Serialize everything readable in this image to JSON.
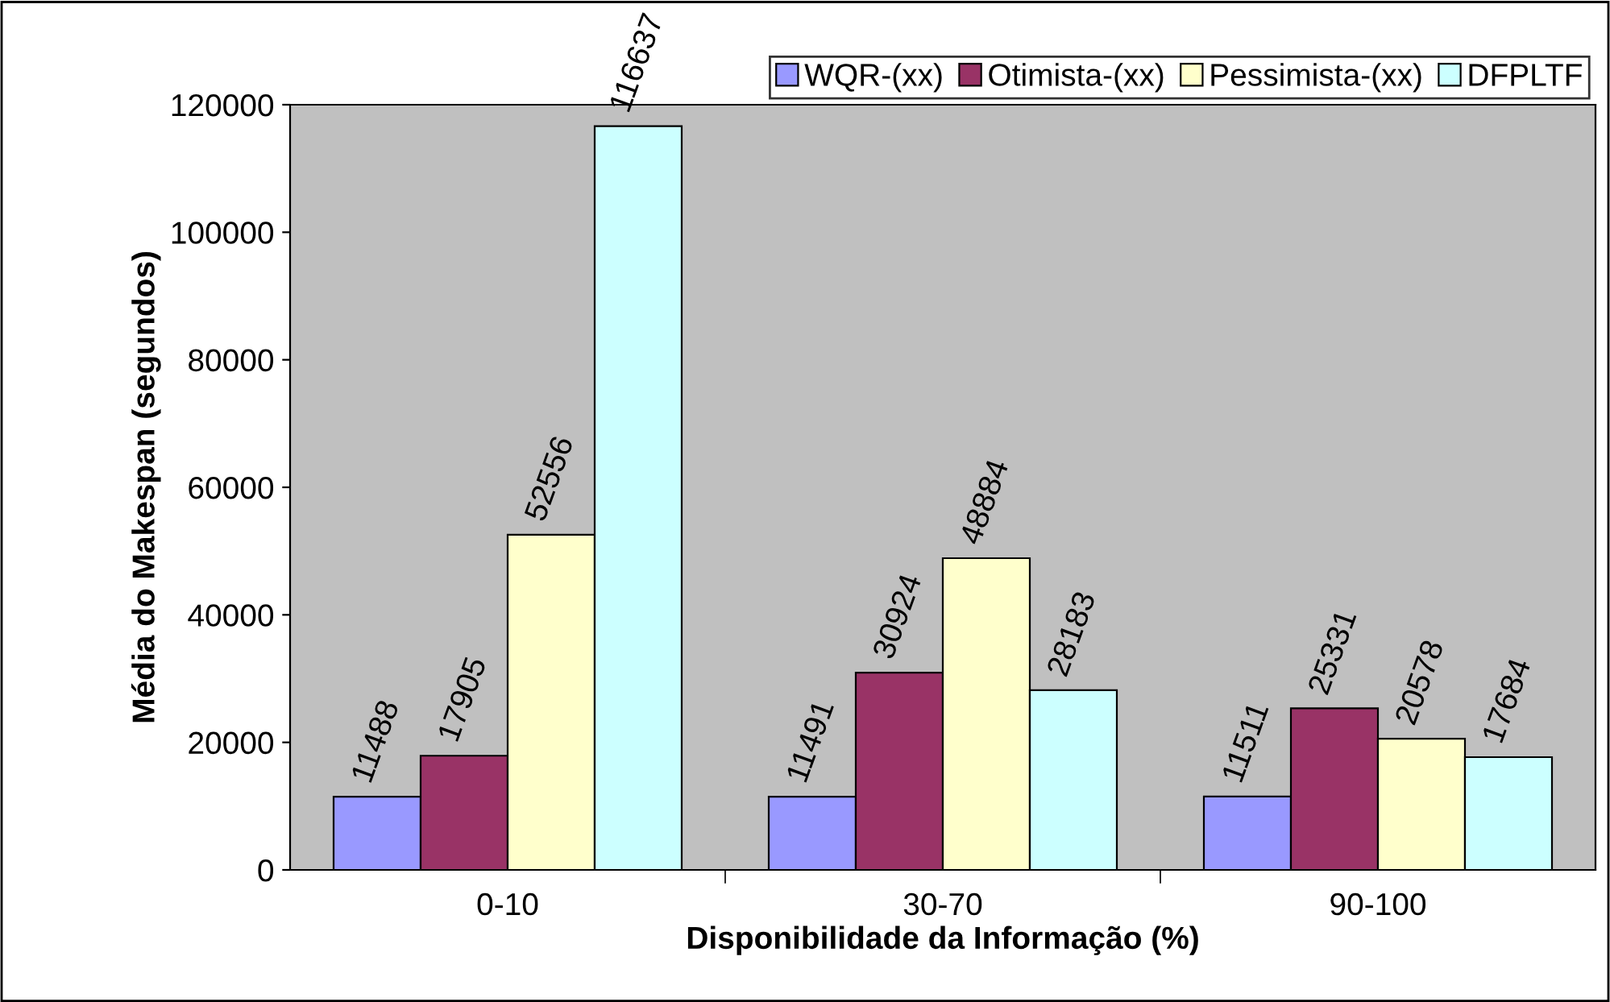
{
  "chart_data": {
    "type": "bar",
    "xlabel": "Disponibilidade da Informação (%)",
    "ylabel": "Média do Makespan (segundos)",
    "categories": [
      "0-10",
      "30-70",
      "90-100"
    ],
    "series": [
      {
        "name": "WQR-(xx)",
        "color": "#9999ff",
        "values": [
          11488,
          11491,
          11511
        ]
      },
      {
        "name": "Otimista-(xx)",
        "color": "#993366",
        "values": [
          17905,
          30924,
          25331
        ]
      },
      {
        "name": "Pessimista-(xx)",
        "color": "#ffffcc",
        "values": [
          52556,
          48884,
          20578
        ]
      },
      {
        "name": "DFPLTF",
        "color": "#ccffff",
        "values": [
          116637,
          28183,
          17684
        ]
      }
    ],
    "ylim": [
      0,
      120000
    ],
    "yticks": [
      0,
      20000,
      40000,
      60000,
      80000,
      100000,
      120000
    ],
    "data_labels": true,
    "legend": "top",
    "grid": false
  }
}
